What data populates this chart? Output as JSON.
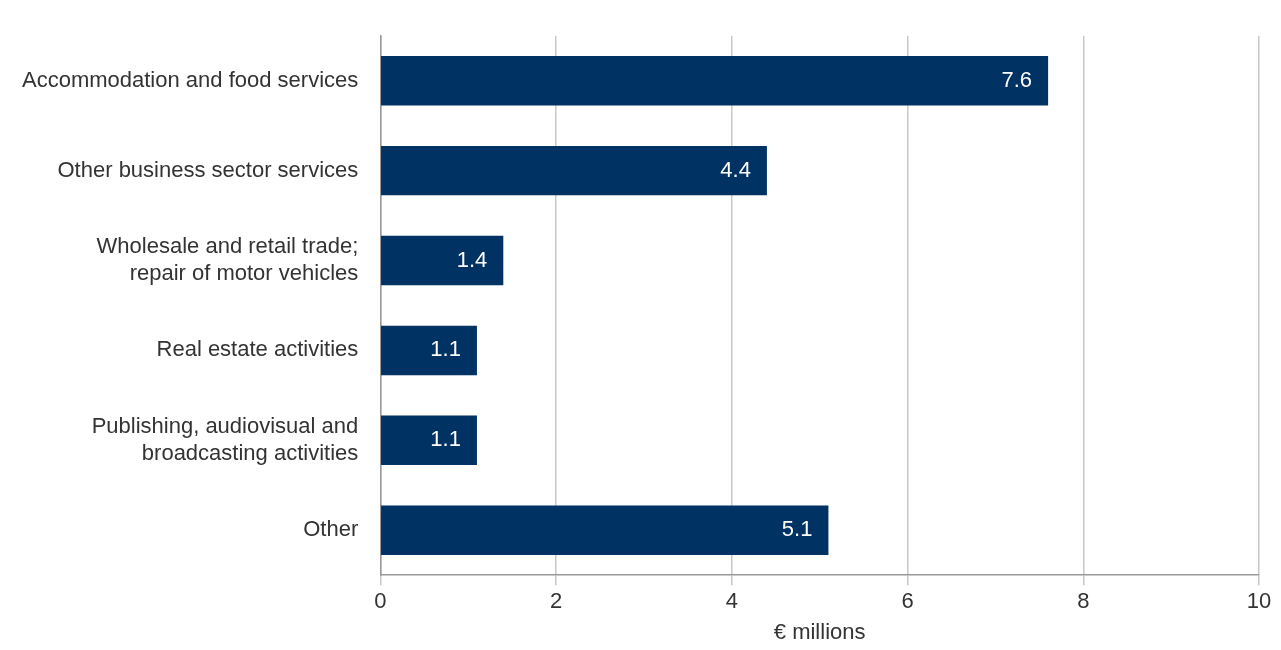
{
  "chart_data": {
    "type": "bar",
    "orientation": "horizontal",
    "xlabel": "€ millions",
    "categories": [
      "Accommodation and food services",
      "Other business sector services",
      "Wholesale and retail trade; repair of motor vehicles",
      "Real estate activities",
      "Publishing, audiovisual and broadcasting activities",
      "Other"
    ],
    "values": [
      7.6,
      4.4,
      1.4,
      1.1,
      1.1,
      5.1
    ],
    "color": "#003263",
    "xlim": [
      0,
      10
    ],
    "xticks": [
      0,
      2,
      4,
      6,
      8,
      10
    ],
    "grid": "x",
    "data_labels": true,
    "legend": false
  }
}
